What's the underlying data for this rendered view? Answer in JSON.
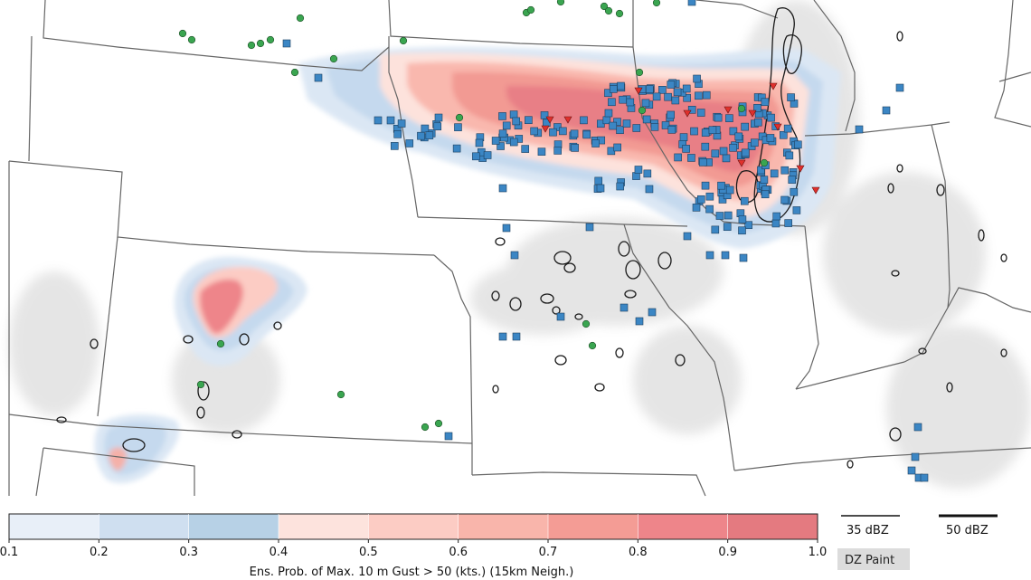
{
  "colorbar": {
    "label": "Ens. Prob. of Max. 10 m Gust > 50 (kts.) (15km Neigh.)",
    "ticks": [
      "0.1",
      "0.2",
      "0.3",
      "0.4",
      "0.5",
      "0.6",
      "0.7",
      "0.8",
      "0.9",
      "1.0"
    ],
    "colors": [
      "#e8eff8",
      "#cfdff0",
      "#b7d1e6",
      "#fde3dd",
      "#fcccc4",
      "#f9b5ab",
      "#f49c95",
      "#ee858a",
      "#e47a80"
    ]
  },
  "legend": {
    "dbz35_label": "35 dBZ",
    "dbz50_label": "50 dBZ",
    "paint_label": "DZ Paint"
  },
  "colors": {
    "report_square": "#3b86c4",
    "report_circle": "#3aa550",
    "report_triangle": "#e0302c",
    "border": "#666666",
    "reflectivity_gray": "#bdbdbd"
  }
}
